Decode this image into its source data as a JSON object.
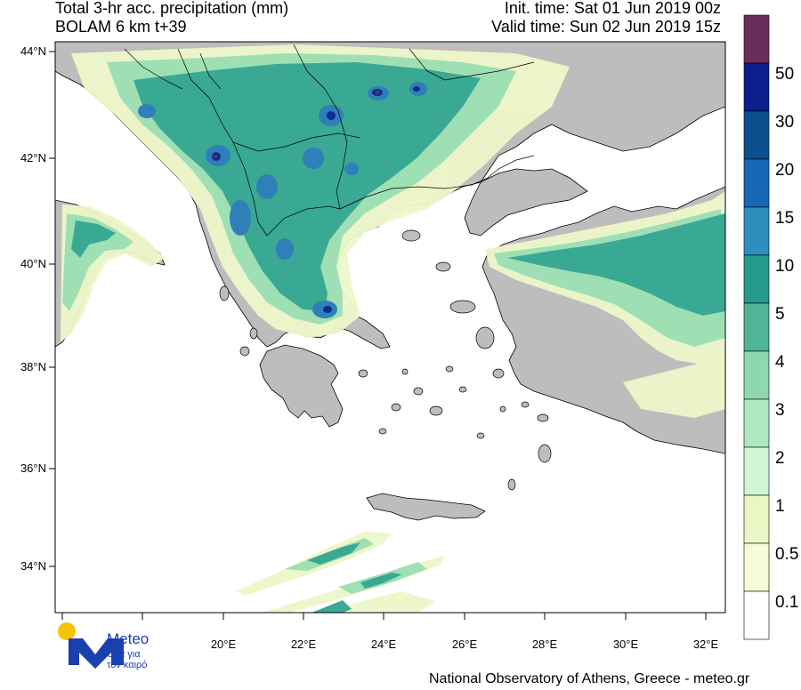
{
  "header": {
    "title": "Total 3-hr acc. precipitation (mm)",
    "subtitle": "BOLAM 6 km t+39",
    "init_time": "Init. time: Sat 01 Jun 2019 00z",
    "valid_time": "Valid time: Sun 02 Jun 2019 15z"
  },
  "axes": {
    "lat_labels": [
      "44°N",
      "42°N",
      "40°N",
      "38°N",
      "36°N",
      "34°N"
    ],
    "lon_labels": [
      "20°E",
      "22°E",
      "24°E",
      "26°E",
      "28°E",
      "30°E",
      "32°E"
    ]
  },
  "legend": {
    "levels": [
      "50",
      "30",
      "20",
      "15",
      "10",
      "5",
      "4",
      "3",
      "2",
      "1",
      "0.5",
      "0.1"
    ],
    "colors": [
      "#6b2d5c",
      "#0c1e8c",
      "#0b4f8e",
      "#1668b4",
      "#2e8fbf",
      "#25998d",
      "#4fb596",
      "#8fd8ae",
      "#aee8c0",
      "#d2f5d3",
      "#eaf7c4",
      "#f7fbd8",
      "#ffffff"
    ]
  },
  "colors": {
    "land": "#bdbdbd",
    "sea": "#ffffff",
    "light_precip": "#eef7c9",
    "mid_precip": "#7fd1a4",
    "heavy_precip": "#1f9a8c",
    "intense_precip": "#2f76b5",
    "extreme_precip": "#0f2c8f"
  },
  "logo": {
    "name": "Meteo",
    "tagline_line1": "Όλα για",
    "tagline_line2": "τον καιρό"
  },
  "footer": "National Observatory of Athens, Greece - meteo.gr"
}
